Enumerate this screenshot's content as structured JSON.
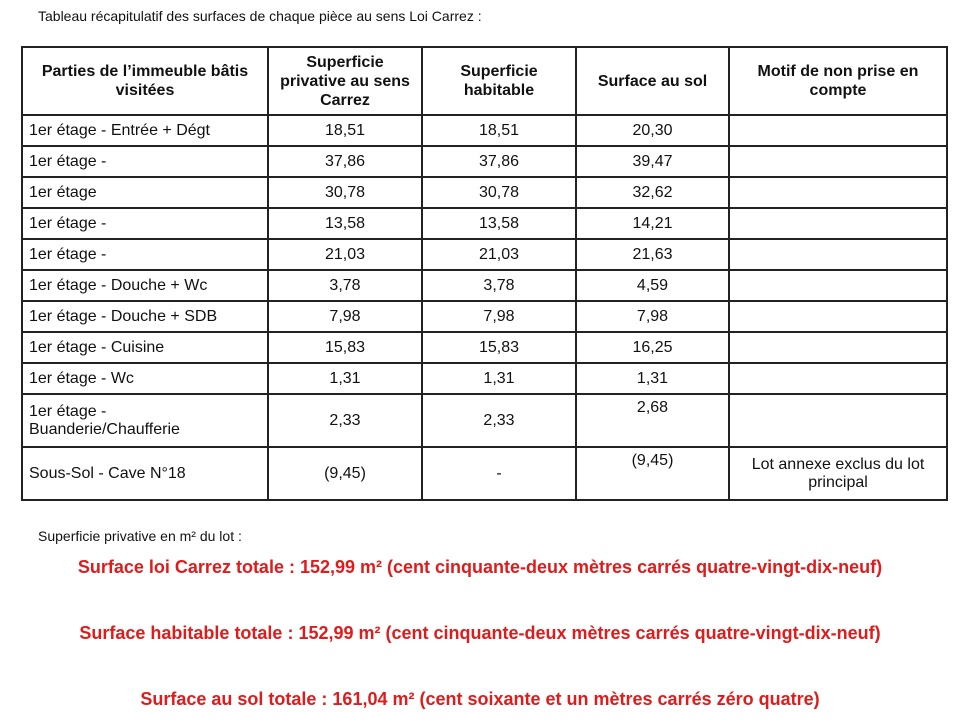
{
  "intro": "Tableau récapitulatif des surfaces de chaque pièce au sens Loi Carrez :",
  "headers": [
    "Parties de l’immeuble bâtis visitées",
    "Superficie privative au sens Carrez",
    "Superficie habitable",
    "Surface au sol",
    "Motif de non prise en compte"
  ],
  "rows": [
    [
      "1er étage - Entrée + Dégt",
      "18,51",
      "18,51",
      "20,30",
      ""
    ],
    [
      "1er étage -",
      "37,86",
      "37,86",
      "39,47",
      ""
    ],
    [
      "1er étage",
      "30,78",
      "30,78",
      "32,62",
      ""
    ],
    [
      "1er étage -",
      "13,58",
      "13,58",
      "14,21",
      ""
    ],
    [
      "1er étage -",
      "21,03",
      "21,03",
      "21,63",
      ""
    ],
    [
      "1er étage - Douche + Wc",
      "3,78",
      "3,78",
      "4,59",
      ""
    ],
    [
      "1er étage - Douche + SDB",
      "7,98",
      "7,98",
      "7,98",
      ""
    ],
    [
      "1er étage - Cuisine",
      "15,83",
      "15,83",
      "16,25",
      ""
    ],
    [
      "1er étage - Wc",
      "1,31",
      "1,31",
      "1,31",
      ""
    ],
    [
      "1er étage - Buanderie/Chaufferie",
      "2,33",
      "2,33",
      "2,68",
      ""
    ],
    [
      "Sous-Sol - Cave N°18",
      "(9,45)",
      "-",
      "(9,45)",
      "Lot annexe exclus du lot principal"
    ]
  ],
  "subtitle": "Superficie privative en m² du lot :",
  "totals": [
    "Surface loi Carrez totale : 152,99 m² (cent cinquante-deux mètres carrés quatre-vingt-dix-neuf)",
    "Surface habitable totale : 152,99 m² (cent cinquante-deux mètres carrés quatre-vingt-dix-neuf)",
    "Surface au sol totale : 161,04 m² (cent soixante et un mètres carrés zéro quatre)"
  ],
  "colors": {
    "totals": "#e01b1b"
  }
}
